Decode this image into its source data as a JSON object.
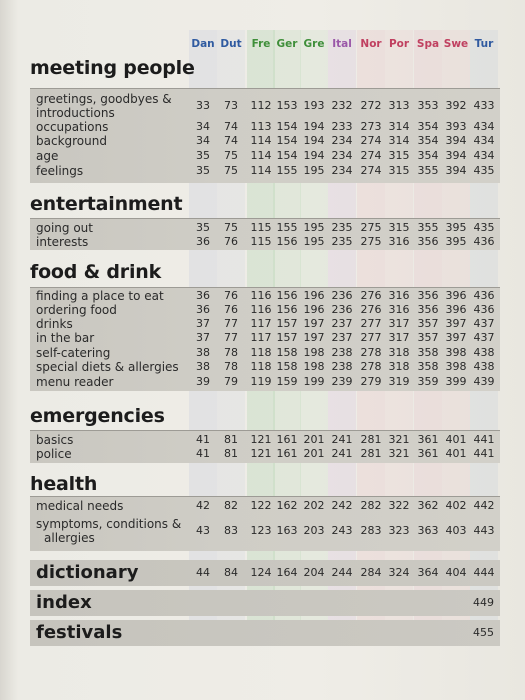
{
  "languages": [
    {
      "code": "Dan",
      "color": "#2f5aa0"
    },
    {
      "code": "Dut",
      "color": "#2f5aa0"
    },
    {
      "code": "Fre",
      "color": "#3f8f3a"
    },
    {
      "code": "Ger",
      "color": "#3f8f3a"
    },
    {
      "code": "Gre",
      "color": "#3f8f3a"
    },
    {
      "code": "Ital",
      "color": "#9a57a8"
    },
    {
      "code": "Nor",
      "color": "#c04060"
    },
    {
      "code": "Por",
      "color": "#c04060"
    },
    {
      "code": "Spa",
      "color": "#c04060"
    },
    {
      "code": "Swe",
      "color": "#c04060"
    },
    {
      "code": "Tur",
      "color": "#2f5aa0"
    }
  ],
  "sections": [
    {
      "title": "meeting people",
      "rows": [
        {
          "label": "greetings, goodbyes &",
          "label2": "introductions",
          "values": [
            "33",
            "73",
            "112",
            "153",
            "193",
            "232",
            "272",
            "313",
            "353",
            "392",
            "433"
          ]
        },
        {
          "label": "occupations",
          "values": [
            "34",
            "74",
            "113",
            "154",
            "194",
            "233",
            "273",
            "314",
            "354",
            "393",
            "434"
          ]
        },
        {
          "label": "background",
          "values": [
            "34",
            "74",
            "114",
            "154",
            "194",
            "234",
            "274",
            "314",
            "354",
            "394",
            "434"
          ]
        },
        {
          "label": "age",
          "values": [
            "35",
            "75",
            "114",
            "154",
            "194",
            "234",
            "274",
            "315",
            "354",
            "394",
            "434"
          ]
        },
        {
          "label": "feelings",
          "values": [
            "35",
            "75",
            "114",
            "155",
            "195",
            "234",
            "274",
            "315",
            "355",
            "394",
            "435"
          ]
        }
      ]
    },
    {
      "title": "entertainment",
      "rows": [
        {
          "label": "going out",
          "values": [
            "35",
            "75",
            "115",
            "155",
            "195",
            "235",
            "275",
            "315",
            "355",
            "395",
            "435"
          ]
        },
        {
          "label": "interests",
          "values": [
            "36",
            "76",
            "115",
            "156",
            "195",
            "235",
            "275",
            "316",
            "356",
            "395",
            "436"
          ]
        }
      ]
    },
    {
      "title": "food & drink",
      "rows": [
        {
          "label": "finding a place to eat",
          "values": [
            "36",
            "76",
            "116",
            "156",
            "196",
            "236",
            "276",
            "316",
            "356",
            "396",
            "436"
          ]
        },
        {
          "label": "ordering food",
          "values": [
            "36",
            "76",
            "116",
            "156",
            "196",
            "236",
            "276",
            "316",
            "356",
            "396",
            "436"
          ]
        },
        {
          "label": "drinks",
          "values": [
            "37",
            "77",
            "117",
            "157",
            "197",
            "237",
            "277",
            "317",
            "357",
            "397",
            "437"
          ]
        },
        {
          "label": "in the bar",
          "values": [
            "37",
            "77",
            "117",
            "157",
            "197",
            "237",
            "277",
            "317",
            "357",
            "397",
            "437"
          ]
        },
        {
          "label": "self-catering",
          "values": [
            "38",
            "78",
            "118",
            "158",
            "198",
            "238",
            "278",
            "318",
            "358",
            "398",
            "438"
          ]
        },
        {
          "label": "special diets & allergies",
          "values": [
            "38",
            "78",
            "118",
            "158",
            "198",
            "238",
            "278",
            "318",
            "358",
            "398",
            "438"
          ]
        },
        {
          "label": "menu reader",
          "values": [
            "39",
            "79",
            "119",
            "159",
            "199",
            "239",
            "279",
            "319",
            "359",
            "399",
            "439"
          ]
        }
      ]
    },
    {
      "title": "emergencies",
      "rows": [
        {
          "label": "basics",
          "values": [
            "41",
            "81",
            "121",
            "161",
            "201",
            "241",
            "281",
            "321",
            "361",
            "401",
            "441"
          ]
        },
        {
          "label": "police",
          "values": [
            "41",
            "81",
            "121",
            "161",
            "201",
            "241",
            "281",
            "321",
            "361",
            "401",
            "441"
          ]
        }
      ]
    },
    {
      "title": "health",
      "rows": [
        {
          "label": "medical needs",
          "values": [
            "42",
            "82",
            "122",
            "162",
            "202",
            "242",
            "282",
            "322",
            "362",
            "402",
            "442"
          ]
        },
        {
          "label": "symptoms, conditions &",
          "label2": "allergies",
          "values": [
            "43",
            "83",
            "123",
            "163",
            "203",
            "243",
            "283",
            "323",
            "363",
            "403",
            "443"
          ]
        }
      ]
    }
  ],
  "bottom": [
    {
      "title": "dictionary",
      "values": [
        "44",
        "84",
        "124",
        "164",
        "204",
        "244",
        "284",
        "324",
        "364",
        "404",
        "444"
      ]
    },
    {
      "title": "index",
      "page": "449"
    },
    {
      "title": "festivals",
      "page": "455"
    }
  ]
}
